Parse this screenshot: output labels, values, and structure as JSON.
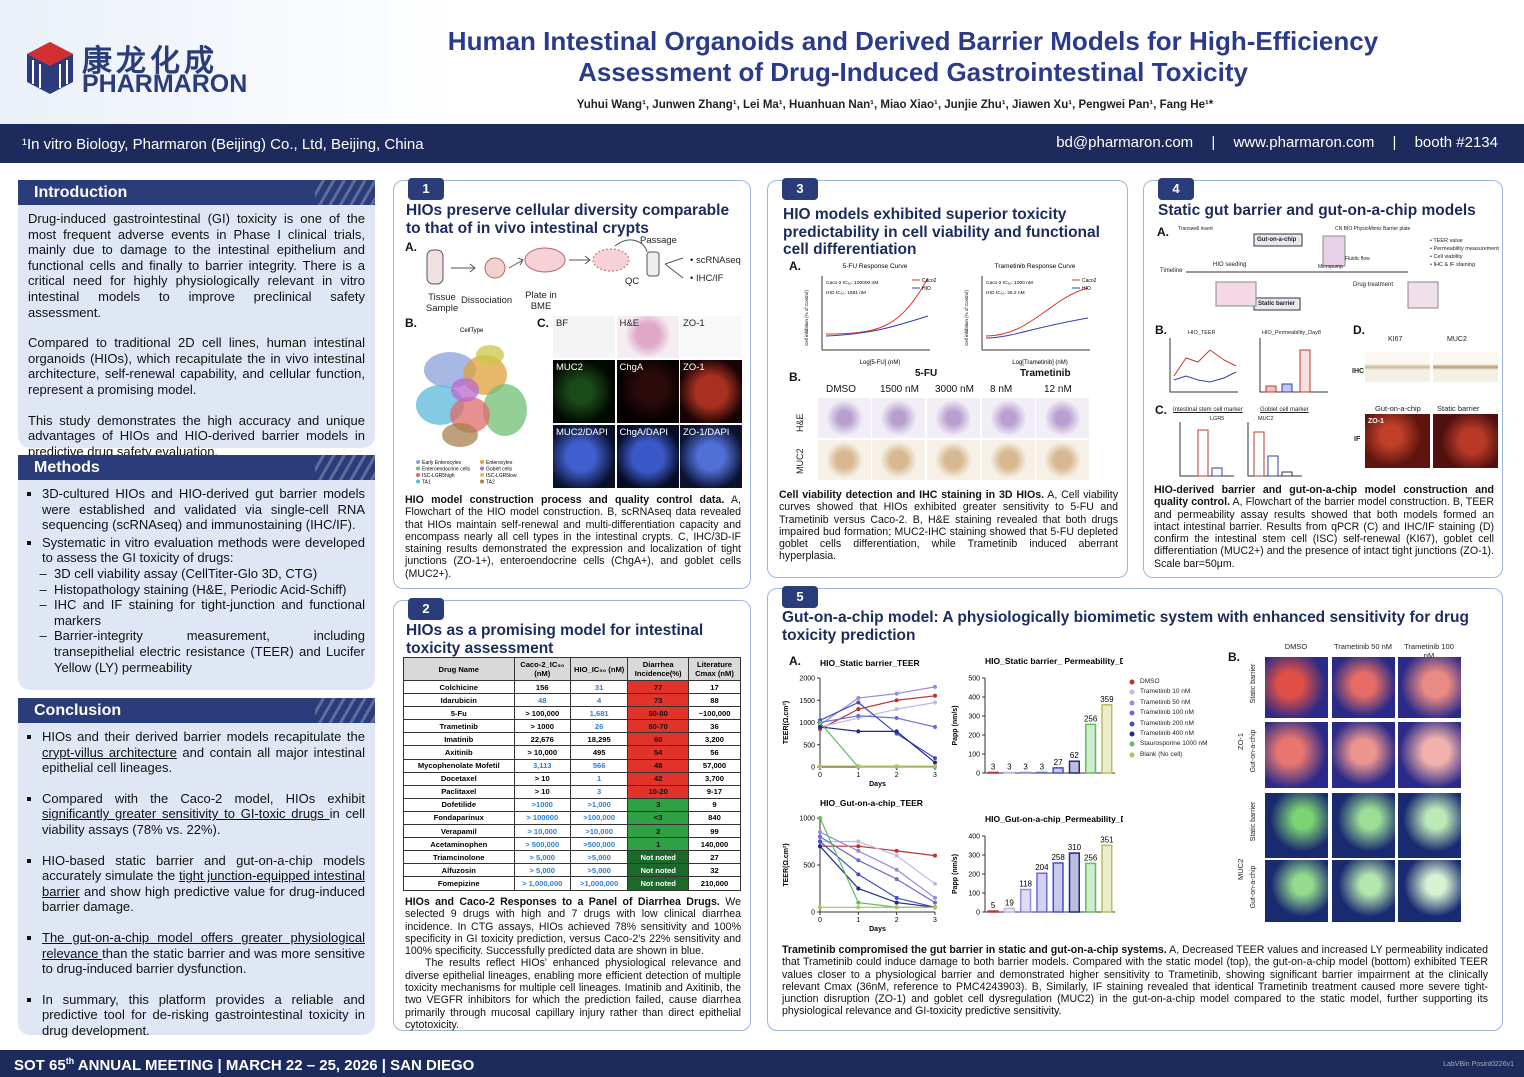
{
  "header": {
    "logo_cn": "康龙化成",
    "logo_en": "PHARMARON",
    "title_line1": "Human Intestinal Organoids and Derived Barrier Models for High-Efficiency",
    "title_line2": "Assessment of Drug-Induced Gastrointestinal Toxicity",
    "authors": "Yuhui Wang¹, Junwen Zhang¹, Lei Ma¹, Huanhuan Nan¹, Miao Xiao¹, Junjie Zhu¹, Jiawen Xu¹, Pengwei Pan¹, Fang He¹*",
    "affiliation": "¹In vitro Biology, Pharmaron (Beijing) Co., Ltd, Beijing, China",
    "email": "bd@pharmaron.com",
    "separator": "|",
    "website": "www.pharmaron.com",
    "booth": "booth #2134"
  },
  "introduction": {
    "heading": "Introduction",
    "paragraphs": [
      "Drug-induced gastrointestinal (GI) toxicity is one of the most frequent adverse events in Phase I clinical trials, mainly due to damage to the intestinal epithelium and functional cells and finally to barrier integrity. There is a critical need for highly physiologically relevant in vitro intestinal models to improve preclinical safety assessment.",
      "Compared to traditional 2D cell lines, human intestinal organoids (HIOs), which recapitulate the in vivo intestinal architecture, self-renewal capability, and cellular function, represent a promising model.",
      "This study demonstrates the high accuracy and unique advantages of HIOs and HIO-derived barrier models in predictive drug safety evaluation."
    ]
  },
  "methods": {
    "heading": "Methods",
    "items": [
      {
        "text": "3D-cultured HIOs and HIO-derived gut barrier models were established and validated via single-cell RNA sequencing (scRNAseq) and immunostaining (IHC/IF).",
        "sub": []
      },
      {
        "text": "Systematic in vitro evaluation methods were developed to assess the GI toxicity of drugs:",
        "sub": [
          "3D cell viability assay (CellTiter-Glo 3D, CTG)",
          "Histopathology staining (H&E, Periodic Acid-Schiff)",
          "IHC and IF staining for tight-junction and functional markers",
          "Barrier-integrity measurement, including transepithelial electric resistance (TEER) and Lucifer Yellow (LY) permeability"
        ]
      }
    ]
  },
  "conclusion": {
    "heading": "Conclusion",
    "items": [
      [
        {
          "text": "HIOs and their derived barrier models recapitulate the "
        },
        {
          "text": "crypt-villus architecture",
          "underline": true
        },
        {
          "text": " and contain all major intestinal epithelial cell lineages."
        }
      ],
      [
        {
          "text": "Compared with the Caco-2 model, HIOs exhibit "
        },
        {
          "text": "significantly greater sensitivity to GI-toxic drugs ",
          "underline": true
        },
        {
          "text": "in cell viability assays (78% vs. 22%)."
        }
      ],
      [
        {
          "text": "HIO-based static barrier and gut-on-a-chip models accurately simulate the "
        },
        {
          "text": "tight junction-equipped intestinal barrier",
          "underline": true
        },
        {
          "text": " and show high predictive value for drug-induced barrier damage."
        }
      ],
      [
        {
          "text": "The gut-on-a-chip model offers greater physiological relevance ",
          "underline": true
        },
        {
          "text": " than the static barrier and was more sensitive to drug-induced barrier dysfunction."
        }
      ],
      [
        {
          "text": "In summary, this platform provides a reliable and predictive tool for de-risking gastrointestinal toxicity in drug development."
        }
      ]
    ]
  },
  "panel1": {
    "number": "1",
    "title": "HIOs preserve cellular diversity comparable to that of in vivo intestinal crypts",
    "label_a": "A.",
    "label_b": "B.",
    "label_c": "C.",
    "flow": {
      "tissue": "Tissue Sample",
      "dissociation": "Dissociation",
      "plate": "Plate in BME",
      "passage": "Passage",
      "qc": "QC",
      "out1": "• scRNAseq",
      "out2": "• IHC/IF"
    },
    "umap_title": "CellType",
    "umap_legend": [
      {
        "name": "Early Enterocytes",
        "color": "#8aa0d8"
      },
      {
        "name": "Enterocytes",
        "color": "#e0a23a"
      },
      {
        "name": "Enteroendocrine cells",
        "color": "#6fbf73"
      },
      {
        "name": "Goblet cells",
        "color": "#b86ad0"
      },
      {
        "name": "ISC-LGR5high",
        "color": "#e06a6a"
      },
      {
        "name": "ISC-LGR5low",
        "color": "#c8c84a"
      },
      {
        "name": "TA1",
        "color": "#5ab8d8"
      },
      {
        "name": "TA2",
        "color": "#a88050"
      }
    ],
    "stains": [
      [
        "BF",
        "H&E",
        "ZO-1"
      ],
      [
        "MUC2",
        "ChgA",
        "ZO-1"
      ],
      [
        "MUC2/DAPI",
        "ChgA/DAPI",
        "ZO-1/DAPI"
      ]
    ],
    "caption": {
      "lead": "HIO model construction process and quality control data.",
      "body": " A, Flowchart of the HIO model construction. B, scRNAseq data revealed that HIOs maintain self-renewal and multi-differentiation capacity and encompass nearly all cell types in the intestinal crypts. C, IHC/3D-IF staining results demonstrated the expression and localization of tight junctions (ZO-1+), enteroendocrine cells (ChgA+), and goblet cells (MUC2+)."
    }
  },
  "panel2": {
    "number": "2",
    "title": "HIOs as a promising model for intestinal toxicity assessment",
    "table": {
      "header": [
        "Drug Name",
        "Caco-2_IC₅₀ (nM)",
        "HIO_IC₅₀ (nM)",
        "Diarrhea Incidence(%)",
        "Literature Cmax (nM)"
      ],
      "predicted_color": "#2f7fd6",
      "rows": [
        {
          "cells": [
            "Colchicine",
            "156",
            "31",
            "77",
            "17"
          ],
          "caco2_predicted": false,
          "hio_predicted": true,
          "incidence_color": "#e2332b"
        },
        {
          "cells": [
            "Idarubicin",
            "48",
            "4",
            "73",
            "88"
          ],
          "caco2_predicted": true,
          "hio_predicted": true,
          "incidence_color": "#e2332b"
        },
        {
          "cells": [
            "5-Fu",
            "> 100,000",
            "1,681",
            "50-80",
            "~100,000"
          ],
          "caco2_predicted": false,
          "hio_predicted": true,
          "incidence_color": "#e2332b"
        },
        {
          "cells": [
            "Trametinib",
            "> 1000",
            "26",
            "60-70",
            "36"
          ],
          "caco2_predicted": false,
          "hio_predicted": true,
          "incidence_color": "#e2332b"
        },
        {
          "cells": [
            "Imatinib",
            "22,676",
            "18,295",
            "60",
            "3,200"
          ],
          "caco2_predicted": false,
          "hio_predicted": false,
          "incidence_color": "#e2332b"
        },
        {
          "cells": [
            "Axitinib",
            "> 10,000",
            "495",
            "54",
            "56"
          ],
          "caco2_predicted": false,
          "hio_predicted": false,
          "incidence_color": "#e2332b"
        },
        {
          "cells": [
            "Mycophenolate Mofetil",
            "3,113",
            "566",
            "48",
            "57,000"
          ],
          "caco2_predicted": true,
          "hio_predicted": true,
          "incidence_color": "#e2332b"
        },
        {
          "cells": [
            "Docetaxel",
            "> 10",
            "1",
            "42",
            "3,700"
          ],
          "caco2_predicted": false,
          "hio_predicted": true,
          "incidence_color": "#e2332b"
        },
        {
          "cells": [
            "Paclitaxel",
            "> 10",
            "3",
            "10-20",
            "9-17"
          ],
          "caco2_predicted": false,
          "hio_predicted": true,
          "incidence_color": "#e2332b"
        },
        {
          "cells": [
            "Dofetilide",
            ">1000",
            ">1,000",
            "3",
            "9"
          ],
          "caco2_predicted": true,
          "hio_predicted": true,
          "incidence_color": "#2fa043"
        },
        {
          "cells": [
            "Fondaparinux",
            "> 100000",
            ">100,000",
            "<3",
            "840"
          ],
          "caco2_predicted": true,
          "hio_predicted": true,
          "incidence_color": "#2fa043"
        },
        {
          "cells": [
            "Verapamil",
            "> 10,000",
            ">10,000",
            "2",
            "99"
          ],
          "caco2_predicted": true,
          "hio_predicted": true,
          "incidence_color": "#2fa043"
        },
        {
          "cells": [
            "Acetaminophen",
            "> 500,000",
            ">500,000",
            "1",
            "140,000"
          ],
          "caco2_predicted": true,
          "hio_predicted": true,
          "incidence_color": "#2fa043"
        },
        {
          "cells": [
            "Triamcinolone",
            "> 5,000",
            ">5,000",
            "Not noted",
            "27"
          ],
          "caco2_predicted": true,
          "hio_predicted": true,
          "incidence_color": "#1b6a2a"
        },
        {
          "cells": [
            "Alfuzosin",
            "> 5,000",
            ">5,000",
            "Not noted",
            "32"
          ],
          "caco2_predicted": true,
          "hio_predicted": true,
          "incidence_color": "#1b6a2a"
        },
        {
          "cells": [
            "Fomepizine",
            "> 1,000,000",
            ">1,000,000",
            "Not noted",
            "210,000"
          ],
          "caco2_predicted": true,
          "hio_predicted": true,
          "incidence_color": "#1b6a2a"
        }
      ]
    },
    "caption": {
      "lead": "HIOs and Caco-2 Responses to a Panel of Diarrhea Drugs.",
      "body": " We selected 9 drugs with high and 7 drugs with low clinical diarrhea incidence. In CTG assays, HIOs achieved 78% sensitivity and 100% specificity in GI toxicity prediction, versus Caco-2's 22% sensitivity and 100% specificity. Successfully predicted data are shown in blue.",
      "body2": "The results reflect HIOs' enhanced physiological relevance and diverse epithelial lineages, enabling more efficient detection of multiple toxicity mechanisms for multiple cell lineages. Imatinib and Axitinib, the two VEGFR inhibitors for which the prediction failed, cause diarrhea primarily through mucosal capillary injury rather than direct epithelial cytotoxicity."
    }
  },
  "panel3": {
    "number": "3",
    "title": "HIO models exhibited superior toxicity predictability in cell viability and functional cell differentiation",
    "label_a": "A.",
    "label_b": "B.",
    "curves": [
      {
        "title": "5-FU Response Curve",
        "xlabel": "Log[5-FU] (nM)",
        "note1": "Caco-2 IC₅₀: 100000 nM",
        "note2": "HIO IC₅₀: 1681 nM"
      },
      {
        "title": "Trametinib Response Curve",
        "xlabel": "Log[Trametinib] (nM)",
        "note1": "Caco-2 IC₅₀: 1000 nM",
        "note2": "HIO IC₅₀: 26.2 nM"
      }
    ],
    "curve_ylabel": "Cell inhibition (% of Control)",
    "curve_legend": [
      {
        "name": "Caco2",
        "color": "#e2332b"
      },
      {
        "name": "HIO",
        "color": "#3040b0"
      }
    ],
    "drug1": "5-FU",
    "drug2": "Trametinib",
    "conditions": [
      "DMSO",
      "1500 nM",
      "3000 nM",
      "8 nM",
      "12 nM"
    ],
    "rows": [
      "H&E",
      "MUC2"
    ],
    "caption": {
      "lead": "Cell viability detection and IHC staining in 3D HIOs.",
      "body": " A, Cell viability curves showed that HIOs exhibited greater sensitivity to 5-FU and Trametinib versus Caco-2. B, H&E staining revealed that both drugs impaired bud formation; MUC2-IHC staining showed that 5-FU depleted goblet cells differentiation, while Trametinib induced aberrant hyperplasia."
    }
  },
  "panel4": {
    "number": "4",
    "title": "Static gut barrier and gut-on-a-chip models",
    "label_a": "A.",
    "label_b": "B.",
    "label_c": "C.",
    "label_d": "D.",
    "diagram": {
      "transwell": "Transwell insert",
      "plate": "CN BIO PhysioMimix Barrier plate",
      "chip": "Gut-on-a-chip",
      "timeline": "Timeline",
      "seeding": "HIO seeding",
      "flow": "Fluidic flow",
      "pump": "Micropump",
      "treatment": "Drug treatment",
      "static": "Static barrier",
      "readouts": [
        "• TEER value",
        "• Permeability measurement",
        "• Cell viability",
        "• IHC & IF staining"
      ]
    },
    "teer_title": "HIO_TEER",
    "perm_title": "HIO_Permeability_Day8",
    "isc": "Intestinal stem cell marker",
    "goblet": "Goblet cell marker",
    "lgr5": "LGR5",
    "muc2": "MUC2",
    "ki67": "KI67",
    "ihc": "IHC",
    "if": "IF",
    "zo1": "ZO-1",
    "chip": "Gut-on-a-chip",
    "static": "Static barrier",
    "caption": {
      "lead": "HIO-derived barrier and gut-on-a-chip model construction and quality control.",
      "body": " A, Flowchart of the barrier model construction. B, TEER and permeability assay results showed that both models formed an intact intestinal barrier. Results from qPCR (C) and IHC/IF staining (D) confirm the intestinal stem cell (ISC) self-renewal (KI67), goblet cell differentiation (MUC2+) and the presence of intact tight junctions (ZO-1). Scale bar=50μm."
    }
  },
  "panel5": {
    "number": "5",
    "title": "Gut-on-a-chip model: A physiologically biomimetic system with enhanced sensitivity for drug toxicity prediction",
    "label_a": "A.",
    "label_b": "B.",
    "legend": [
      {
        "name": "DMSO",
        "color": "#b8332b"
      },
      {
        "name": "Trametinib 10 nM",
        "color": "#c3b6e6"
      },
      {
        "name": "Trametinib 50 nM",
        "color": "#978bd8"
      },
      {
        "name": "Trametinib 100 nM",
        "color": "#6a6ad2"
      },
      {
        "name": "Trametinib 200 nM",
        "color": "#4350c4"
      },
      {
        "name": "Trametinib 400 nM",
        "color": "#1e2890"
      },
      {
        "name": "Staurosporine 1000 nM",
        "color": "#5cbf5c"
      },
      {
        "name": "Blank (No cell)",
        "color": "#bcbc5c"
      }
    ],
    "teer_ylabel": "TEER(Ω.cm²)",
    "xlabel": "Days",
    "perm_ylabel": "Papp (nm/s)",
    "teer_static": {
      "title": "HIO_Static barrier_TEER",
      "x": [
        0,
        1,
        2,
        3
      ],
      "xlim": [
        0,
        3
      ],
      "xticks": [
        0,
        1,
        2,
        3
      ],
      "ylim": [
        0,
        2000
      ],
      "yticks": [
        0,
        500,
        1000,
        1500,
        2000
      ],
      "values": [
        [
          850,
          1300,
          1500,
          1600
        ],
        [
          900,
          1100,
          1300,
          1450
        ],
        [
          950,
          1550,
          1650,
          1800
        ],
        [
          1000,
          1150,
          1100,
          900
        ],
        [
          1050,
          1450,
          750,
          200
        ],
        [
          900,
          800,
          800,
          100
        ],
        [
          1000,
          0,
          0,
          0
        ],
        [
          20,
          20,
          20,
          20
        ]
      ]
    },
    "teer_chip": {
      "title": "HIO_Gut-on-a-chip_TEER",
      "x": [
        0,
        1,
        2,
        3
      ],
      "xlim": [
        0,
        3
      ],
      "xticks": [
        0,
        1,
        2,
        3
      ],
      "ylim": [
        0,
        1000
      ],
      "yticks": [
        0,
        500,
        1000
      ],
      "values": [
        [
          700,
          700,
          650,
          600
        ],
        [
          750,
          750,
          600,
          300
        ],
        [
          850,
          650,
          450,
          150
        ],
        [
          800,
          550,
          350,
          100
        ],
        [
          750,
          400,
          150,
          50
        ],
        [
          700,
          250,
          100,
          50
        ],
        [
          1000,
          100,
          50,
          50
        ],
        [
          50,
          50,
          50,
          50
        ]
      ]
    },
    "perm_static": {
      "title": "HIO_Static barrier_ Permeability_Day3",
      "ylim": [
        0,
        500
      ],
      "yticks": [
        0,
        100,
        200,
        300,
        400,
        500
      ],
      "values": [
        3,
        3,
        3,
        3,
        27,
        62,
        256,
        359
      ]
    },
    "perm_chip": {
      "title": "HIO_Gut-on-a-chip_Permeability_Day3",
      "ylim": [
        0,
        400
      ],
      "yticks": [
        0,
        100,
        200,
        300,
        400
      ],
      "values": [
        5,
        19,
        118,
        204,
        258,
        310,
        256,
        351
      ]
    },
    "if_columns": [
      "DMSO",
      "Trametinib 50 nM",
      "Trametinib 100 nM"
    ],
    "if_rows": [
      "Static barrier",
      "Gut-on-a-chip"
    ],
    "if_markers": [
      "ZO-1",
      "MUC2"
    ],
    "caption": {
      "lead": "Trametinib compromised the gut barrier in static and gut-on-a-chip systems.",
      "body": " A, Decreased TEER values and increased LY permeability indicated that Trametinib could induce damage to both barrier models. Compared with the static model (top), the gut-on-a-chip model (bottom) exhibited TEER values closer to a physiological barrier and demonstrated higher sensitivity to Trametinib, showing significant barrier impairment at the clinically relevant Cmax (36nM, reference to PMC4243903). B, Similarly, IF staining revealed that identical Trametinib treatment caused more severe tight-junction disruption (ZO-1) and goblet cell dysregulation (MUC2) in the gut-on-a-chip model compared to the static model, further supporting its physiological relevance and GI-toxicity predictive sensitivity."
    }
  },
  "footer": {
    "meeting_a": "SOT 65",
    "meeting_sup": "th",
    "meeting_b": " ANNUAL MEETING | MARCH 22 – 25, 2026 | SAN DIEGO",
    "code": "LabVBin Posint0226v1"
  }
}
